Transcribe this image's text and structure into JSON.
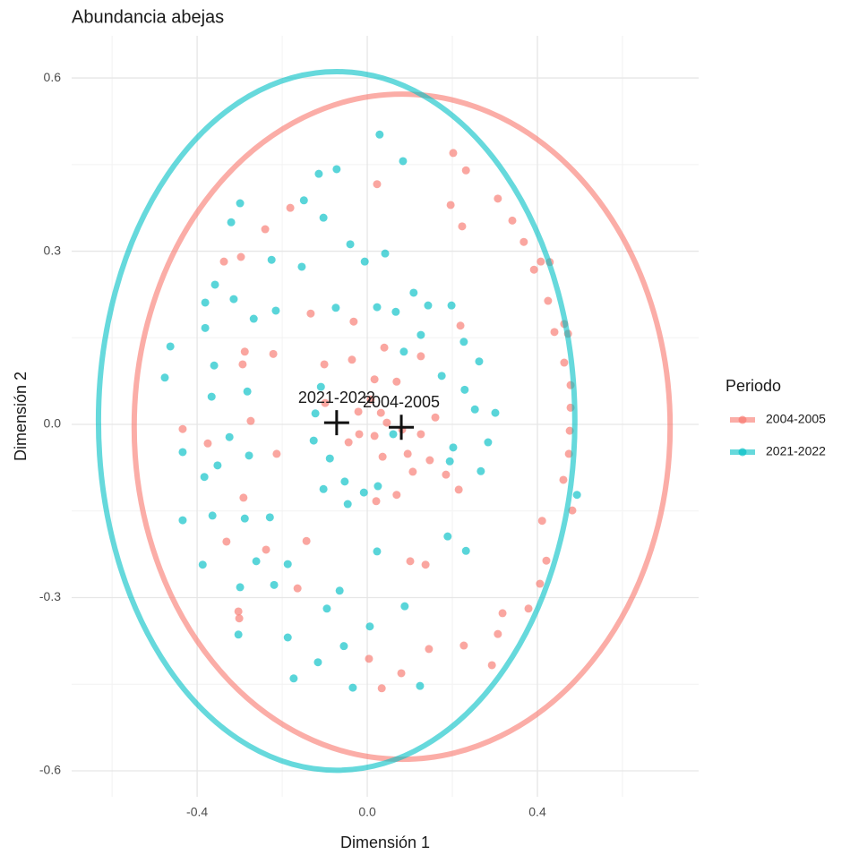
{
  "chart_data": {
    "type": "scatter",
    "title": "Abundancia abejas",
    "x_label": "Dimensión 1",
    "y_label": "Dimensión 2",
    "legend_title": "Periodo",
    "legend_position": "right",
    "grid": true,
    "xlim": [
      -0.695,
      0.779
    ],
    "ylim": [
      -0.645,
      0.673
    ],
    "xticks": [
      -0.4,
      {
        "value": 0,
        "label": "0.0"
      },
      0.4
    ],
    "yticks": [
      -0.6,
      -0.3,
      {
        "value": 0,
        "label": "0.0"
      },
      0.3,
      0.6
    ],
    "x_minor_grid": [
      -0.6,
      -0.2,
      0.2,
      0.6
    ],
    "y_minor_grid": [
      -0.45,
      -0.15,
      0.15,
      0.45
    ],
    "series": [
      {
        "name": "2004-2005",
        "color": "#F8766D",
        "x": [
          0.023,
          0.202,
          0.232,
          0.307,
          0.196,
          0.223,
          0.341,
          0.368,
          0.408,
          0.429,
          0.392,
          -0.181,
          -0.24,
          -0.297,
          -0.337,
          -0.133,
          -0.032,
          0.425,
          0.44,
          0.463,
          0.472,
          0.219,
          0.04,
          0.126,
          -0.036,
          -0.288,
          -0.221,
          -0.293,
          0.463,
          0.478,
          0.478,
          0.476,
          0.474,
          0.461,
          -0.101,
          0.017,
          0.069,
          -0.099,
          0.008,
          -0.021,
          -0.019,
          -0.044,
          0.032,
          0.046,
          0.16,
          0.082,
          0.126,
          0.095,
          0.147,
          0.017,
          -0.434,
          -0.375,
          -0.274,
          -0.213,
          0.036,
          0.107,
          0.185,
          0.215,
          -0.291,
          0.021,
          0.069,
          0.411,
          0.482,
          0.421,
          -0.331,
          -0.143,
          -0.238,
          -0.164,
          0.406,
          0.101,
          0.137,
          -0.303,
          -0.301,
          0.379,
          0.318,
          0.307,
          0.227,
          0.145,
          0.004,
          0.08,
          0.034,
          0.293
        ],
        "y": [
          0.416,
          0.47,
          0.44,
          0.391,
          0.38,
          0.343,
          0.353,
          0.316,
          0.282,
          0.281,
          0.268,
          0.375,
          0.338,
          0.29,
          0.282,
          0.192,
          0.178,
          0.214,
          0.16,
          0.174,
          0.157,
          0.171,
          0.133,
          0.118,
          0.112,
          0.126,
          0.122,
          0.104,
          0.107,
          0.068,
          0.029,
          -0.011,
          -0.051,
          -0.096,
          0.104,
          0.078,
          0.074,
          0.037,
          0.043,
          0.022,
          -0.017,
          -0.031,
          0.02,
          0.003,
          0.012,
          -0.009,
          -0.017,
          -0.051,
          -0.062,
          -0.02,
          -0.008,
          -0.033,
          0.006,
          -0.051,
          -0.056,
          -0.082,
          -0.087,
          -0.113,
          -0.127,
          -0.133,
          -0.122,
          -0.167,
          -0.149,
          -0.236,
          -0.203,
          -0.202,
          -0.217,
          -0.284,
          -0.276,
          -0.237,
          -0.243,
          -0.324,
          -0.336,
          -0.319,
          -0.327,
          -0.363,
          -0.383,
          -0.389,
          -0.406,
          -0.431,
          -0.457,
          -0.417
        ],
        "ellipse": {
          "cx": 0.082,
          "cy": -0.004,
          "rx": 0.63,
          "ry": 0.576
        },
        "centroid": {
          "x": 0.08,
          "y": -0.005
        }
      },
      {
        "name": "2021-2022",
        "color": "#00BFC4",
        "x": [
          0.029,
          0.084,
          -0.072,
          -0.114,
          -0.149,
          -0.299,
          -0.32,
          -0.103,
          -0.04,
          -0.225,
          -0.154,
          0.042,
          -0.006,
          -0.358,
          -0.314,
          -0.381,
          -0.215,
          -0.267,
          -0.074,
          0.023,
          0.067,
          0.109,
          0.143,
          0.198,
          0.126,
          0.227,
          0.263,
          -0.463,
          -0.381,
          -0.476,
          -0.36,
          0.086,
          0.175,
          -0.366,
          -0.282,
          -0.109,
          0.229,
          0.253,
          0.301,
          -0.122,
          -0.324,
          -0.434,
          -0.352,
          -0.383,
          -0.126,
          -0.088,
          0.061,
          0.202,
          0.284,
          0.267,
          0.493,
          -0.278,
          -0.103,
          -0.053,
          -0.008,
          0.025,
          -0.046,
          0.194,
          -0.434,
          -0.364,
          -0.288,
          -0.229,
          0.189,
          0.232,
          -0.387,
          -0.261,
          -0.187,
          -0.219,
          0.023,
          -0.299,
          -0.065,
          0.088,
          -0.095,
          -0.303,
          -0.187,
          0.006,
          -0.055,
          -0.116,
          -0.173,
          -0.034,
          0.124
        ],
        "y": [
          0.502,
          0.456,
          0.442,
          0.434,
          0.388,
          0.383,
          0.35,
          0.358,
          0.312,
          0.285,
          0.273,
          0.296,
          0.282,
          0.242,
          0.217,
          0.211,
          0.197,
          0.183,
          0.202,
          0.203,
          0.195,
          0.228,
          0.206,
          0.206,
          0.155,
          0.143,
          0.109,
          0.135,
          0.167,
          0.081,
          0.102,
          0.126,
          0.084,
          0.048,
          0.057,
          0.065,
          0.06,
          0.026,
          0.02,
          0.019,
          -0.022,
          -0.048,
          -0.071,
          -0.091,
          -0.028,
          -0.059,
          -0.017,
          -0.04,
          -0.031,
          -0.081,
          -0.122,
          -0.054,
          -0.112,
          -0.099,
          -0.118,
          -0.107,
          -0.138,
          -0.064,
          -0.166,
          -0.158,
          -0.163,
          -0.161,
          -0.194,
          -0.219,
          -0.243,
          -0.237,
          -0.242,
          -0.278,
          -0.22,
          -0.282,
          -0.288,
          -0.315,
          -0.319,
          -0.364,
          -0.369,
          -0.35,
          -0.384,
          -0.412,
          -0.44,
          -0.456,
          -0.453
        ],
        "ellipse": {
          "cx": -0.072,
          "cy": 0.006,
          "rx": 0.56,
          "ry": 0.605
        },
        "centroid": {
          "x": -0.072,
          "y": 0.003
        }
      }
    ]
  }
}
